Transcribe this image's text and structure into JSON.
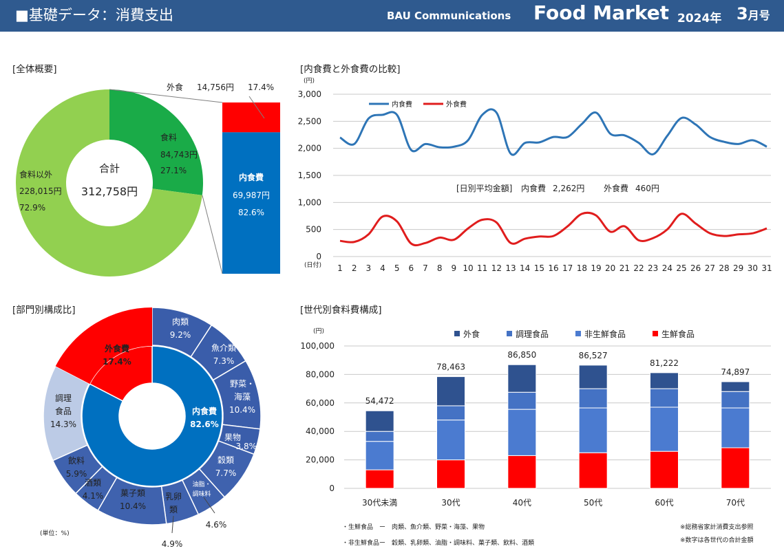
{
  "header": {
    "title": "■基礎データ：消費支出",
    "company": "BAU Communications",
    "brand": "Food Market",
    "year": "2024年",
    "issue_num": "3",
    "issue_suffix": "月号"
  },
  "colors": {
    "header_bg": "#2f5a8f",
    "food": "#1aab48",
    "nonfood": "#92d050",
    "eat_out": "#ff0000",
    "eat_in": "#0070c0",
    "line_in": "#2e75b6",
    "line_out": "#e01d1d",
    "gaishoku": "#2f528f",
    "chori": "#4472c4",
    "hiseisen": "#4b7bd0",
    "seisen": "#ff0000",
    "outer_fresh": "#3a5daa",
    "outer_nonfresh": "#3f62ae",
    "outer_prepared": "#bccbe6",
    "outer_eatout": "#ff0000"
  },
  "sections": {
    "overview": "[全体概要]",
    "compare": "[内食費と外食費の比較]",
    "category": "[部門別構成比]",
    "generation": "[世代別食料費構成]"
  },
  "chart_data": [
    {
      "id": "overview",
      "type": "pie",
      "center_label": "合計",
      "center_value": "312,758円",
      "slices": [
        {
          "name": "食料",
          "value_label": "84,743円",
          "pct_label": "27.1%",
          "value": 84743
        },
        {
          "name": "食料以外",
          "value_label": "228,015円",
          "pct_label": "72.9%",
          "value": 228015
        }
      ],
      "breakdown": [
        {
          "name": "外食",
          "value_label": "14,756円",
          "pct_label": "17.4%",
          "value": 14756
        },
        {
          "name": "内食費",
          "value_label": "69,987円",
          "pct_label": "82.6%",
          "value": 69987
        }
      ]
    },
    {
      "id": "compare",
      "type": "line",
      "ylabel": "(円)",
      "xlabel": "(日付)",
      "ylim": [
        0,
        3000
      ],
      "yticks": [
        0,
        500,
        1000,
        1500,
        2000,
        2500,
        3000
      ],
      "ytick_labels": [
        "0",
        "500",
        "1,000",
        "1,500",
        "2,000",
        "2,500",
        "3,000"
      ],
      "x": [
        1,
        2,
        3,
        4,
        5,
        6,
        7,
        8,
        9,
        10,
        11,
        12,
        13,
        14,
        15,
        16,
        17,
        18,
        19,
        20,
        21,
        22,
        23,
        24,
        25,
        26,
        27,
        28,
        29,
        30,
        31
      ],
      "series": [
        {
          "name": "内食費",
          "values": [
            2200,
            2080,
            2550,
            2620,
            2620,
            1970,
            2080,
            2020,
            2030,
            2150,
            2620,
            2660,
            1900,
            2100,
            2110,
            2210,
            2210,
            2450,
            2660,
            2270,
            2240,
            2100,
            1890,
            2230,
            2560,
            2440,
            2210,
            2120,
            2080,
            2150,
            2030
          ]
        },
        {
          "name": "外食費",
          "values": [
            290,
            270,
            410,
            740,
            650,
            240,
            250,
            350,
            310,
            520,
            680,
            630,
            250,
            330,
            370,
            380,
            560,
            790,
            760,
            460,
            560,
            300,
            340,
            500,
            790,
            610,
            430,
            380,
            410,
            430,
            520
          ]
        }
      ],
      "legend": "top-left",
      "grid": true,
      "annotation": {
        "label": "[日別平均金額]",
        "in_label": "内食費",
        "in_value": "2,262円",
        "out_label": "外食費",
        "out_value": "460円"
      }
    },
    {
      "id": "category",
      "type": "pie",
      "inner": [
        {
          "name": "内食費",
          "pct_label": "82.6%",
          "value": 82.6
        },
        {
          "name": "外食費",
          "pct_label": "17.4%",
          "value": 17.4
        }
      ],
      "outer": [
        {
          "name": "肉類",
          "pct_label": "9.2%",
          "value": 9.2,
          "group": "fresh"
        },
        {
          "name": "魚介類",
          "pct_label": "7.3%",
          "value": 7.3,
          "group": "fresh"
        },
        {
          "name": "野菜・海藻",
          "pct_label": "10.4%",
          "value": 10.4,
          "group": "fresh"
        },
        {
          "name": "果物",
          "pct_label": "3.8%",
          "value": 3.8,
          "group": "fresh"
        },
        {
          "name": "穀類",
          "pct_label": "7.7%",
          "value": 7.7,
          "group": "nonfresh"
        },
        {
          "name": "油脂・調味料",
          "pct_label": "4.6%",
          "value": 4.6,
          "group": "nonfresh"
        },
        {
          "name": "乳卵類",
          "pct_label": "4.9%",
          "value": 4.9,
          "group": "nonfresh"
        },
        {
          "name": "菓子類",
          "pct_label": "10.4%",
          "value": 10.4,
          "group": "nonfresh"
        },
        {
          "name": "酒類",
          "pct_label": "4.1%",
          "value": 4.1,
          "group": "nonfresh"
        },
        {
          "name": "飲料",
          "pct_label": "5.9%",
          "value": 5.9,
          "group": "nonfresh"
        },
        {
          "name": "調理食品",
          "pct_label": "14.3%",
          "value": 14.3,
          "group": "prepared"
        },
        {
          "name": "外食費",
          "pct_label": "17.4%",
          "value": 17.4,
          "group": "eatout"
        }
      ],
      "unit_note": "(単位：%)"
    },
    {
      "id": "generation",
      "type": "bar",
      "stacked": true,
      "ylabel": "(円)",
      "ylim": [
        0,
        100000
      ],
      "yticks": [
        0,
        20000,
        40000,
        60000,
        80000,
        100000
      ],
      "ytick_labels": [
        "0",
        "20,000",
        "40,000",
        "60,000",
        "80,000",
        "100,000"
      ],
      "categories": [
        "30代未満",
        "30代",
        "40代",
        "50代",
        "60代",
        "70代"
      ],
      "totals": [
        54472,
        78463,
        86850,
        86527,
        81222,
        74897
      ],
      "total_labels": [
        "54,472",
        "78,463",
        "86,850",
        "86,527",
        "81,222",
        "74,897"
      ],
      "series": [
        {
          "name": "生鮮食品",
          "values": [
            13000,
            20000,
            23000,
            25000,
            26000,
            28500
          ]
        },
        {
          "name": "非生鮮食品",
          "values": [
            20000,
            28000,
            32500,
            31500,
            31000,
            28000
          ]
        },
        {
          "name": "調理食品",
          "values": [
            7000,
            10000,
            12000,
            13500,
            13000,
            11500
          ]
        },
        {
          "name": "外食",
          "values": [
            14472,
            20463,
            19350,
            16527,
            11222,
            6897
          ]
        }
      ],
      "legend": "top",
      "legend_order": [
        "外食",
        "調理食品",
        "非生鮮食品",
        "生鮮食品"
      ],
      "grid": true,
      "notes": [
        "・生鮮食品　ー　肉類、魚介類、野菜・海藻、果物",
        "・非生鮮食品ー　穀類、乳卵類、油脂・調味料、菓子類、飲料、酒類"
      ],
      "source_notes": [
        "※総務省家計消費支出参照",
        "※数字は各世代の合計金額"
      ]
    }
  ]
}
